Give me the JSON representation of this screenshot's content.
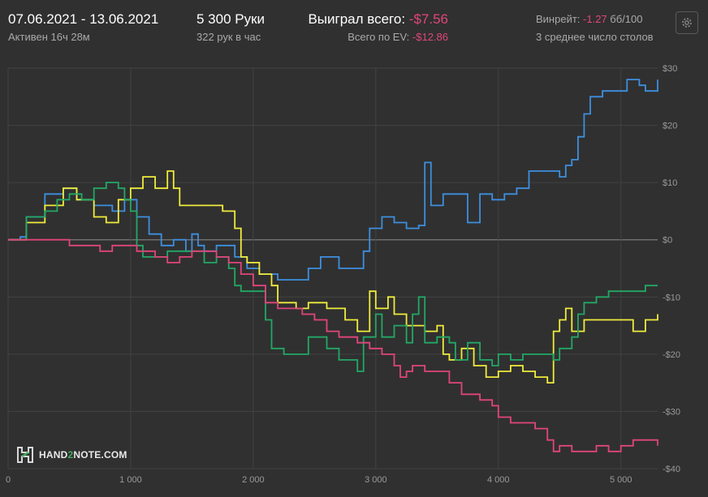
{
  "header": {
    "date_range": "07.06.2021 - 13.06.2021",
    "active": "Активен 16ч 28м",
    "hands": "5 300 Руки",
    "hands_per_hour": "322 рук в час",
    "won_label": "Выиграл всего:",
    "won_value": "-$7.56",
    "ev_label": "Всего по EV:",
    "ev_value": "-$12.86",
    "winrate_label": "Винрейт:",
    "winrate_value": "-1.27",
    "winrate_unit": "бб/100",
    "tables": "3 среднее число столов"
  },
  "settings_icon": "gear-icon",
  "logo": {
    "prefix": "HAND",
    "mid": "2",
    "suffix": "NOTE.COM"
  },
  "colors": {
    "background": "#303030",
    "grid": "#424242",
    "zero_line": "#7a7a7a",
    "negative": "#e0457b",
    "blue": "#3d8fe0",
    "yellow": "#f0ec3c",
    "green": "#22a865",
    "pink": "#e0457b"
  },
  "chart_data": {
    "type": "line",
    "xlim": [
      0,
      5300
    ],
    "ylim": [
      -40,
      30
    ],
    "x_ticks": [
      0,
      1000,
      2000,
      3000,
      4000,
      5000
    ],
    "x_tick_labels": [
      "0",
      "1 000",
      "2 000",
      "3 000",
      "4 000",
      "5 000"
    ],
    "y_ticks": [
      30,
      20,
      10,
      0,
      -10,
      -20,
      -30,
      -40
    ],
    "y_tick_labels": [
      "$30",
      "$20",
      "$10",
      "$0",
      "-$10",
      "-$20",
      "-$30",
      "-$40"
    ],
    "grid": true,
    "series": [
      {
        "color": "#3d8fe0",
        "points": [
          [
            0,
            0
          ],
          [
            100,
            0.5
          ],
          [
            150,
            4
          ],
          [
            300,
            8
          ],
          [
            450,
            9
          ],
          [
            560,
            7
          ],
          [
            700,
            6
          ],
          [
            850,
            5
          ],
          [
            950,
            7
          ],
          [
            1050,
            4
          ],
          [
            1150,
            1
          ],
          [
            1250,
            -1
          ],
          [
            1350,
            0
          ],
          [
            1450,
            -2
          ],
          [
            1500,
            1
          ],
          [
            1550,
            -1
          ],
          [
            1600,
            -2
          ],
          [
            1700,
            -1
          ],
          [
            1850,
            -3
          ],
          [
            1950,
            -5
          ],
          [
            2050,
            -6
          ],
          [
            2200,
            -7
          ],
          [
            2350,
            -7
          ],
          [
            2450,
            -5
          ],
          [
            2550,
            -3
          ],
          [
            2700,
            -5
          ],
          [
            2850,
            -5
          ],
          [
            2900,
            -2
          ],
          [
            2950,
            2
          ],
          [
            3050,
            4
          ],
          [
            3150,
            3
          ],
          [
            3250,
            2
          ],
          [
            3350,
            2.5
          ],
          [
            3400,
            13.5
          ],
          [
            3450,
            6
          ],
          [
            3550,
            8
          ],
          [
            3650,
            8
          ],
          [
            3750,
            3
          ],
          [
            3850,
            8
          ],
          [
            3950,
            7
          ],
          [
            4050,
            8
          ],
          [
            4150,
            9
          ],
          [
            4250,
            12
          ],
          [
            4400,
            12
          ],
          [
            4500,
            11
          ],
          [
            4550,
            13
          ],
          [
            4600,
            14
          ],
          [
            4650,
            18
          ],
          [
            4700,
            22
          ],
          [
            4750,
            25
          ],
          [
            4850,
            26
          ],
          [
            4950,
            26
          ],
          [
            5050,
            28
          ],
          [
            5150,
            27
          ],
          [
            5200,
            26
          ],
          [
            5300,
            28
          ]
        ]
      },
      {
        "color": "#f0ec3c",
        "points": [
          [
            0,
            0
          ],
          [
            150,
            3
          ],
          [
            300,
            6
          ],
          [
            450,
            9
          ],
          [
            560,
            7
          ],
          [
            700,
            4
          ],
          [
            800,
            3
          ],
          [
            900,
            7
          ],
          [
            1000,
            9
          ],
          [
            1100,
            11
          ],
          [
            1200,
            9
          ],
          [
            1300,
            12
          ],
          [
            1350,
            9
          ],
          [
            1400,
            6
          ],
          [
            1500,
            6
          ],
          [
            1600,
            6
          ],
          [
            1750,
            5
          ],
          [
            1850,
            2
          ],
          [
            1900,
            -3
          ],
          [
            1950,
            -4
          ],
          [
            2050,
            -6
          ],
          [
            2150,
            -8
          ],
          [
            2200,
            -11
          ],
          [
            2350,
            -12
          ],
          [
            2450,
            -11
          ],
          [
            2600,
            -12
          ],
          [
            2750,
            -14
          ],
          [
            2850,
            -16
          ],
          [
            2950,
            -9
          ],
          [
            3000,
            -12
          ],
          [
            3100,
            -10
          ],
          [
            3150,
            -13
          ],
          [
            3250,
            -15
          ],
          [
            3400,
            -16
          ],
          [
            3500,
            -15
          ],
          [
            3550,
            -20
          ],
          [
            3600,
            -21
          ],
          [
            3700,
            -19
          ],
          [
            3800,
            -22
          ],
          [
            3900,
            -24
          ],
          [
            4000,
            -23
          ],
          [
            4100,
            -22
          ],
          [
            4200,
            -23
          ],
          [
            4300,
            -24
          ],
          [
            4400,
            -25
          ],
          [
            4450,
            -16
          ],
          [
            4500,
            -14
          ],
          [
            4550,
            -12
          ],
          [
            4600,
            -16
          ],
          [
            4700,
            -14
          ],
          [
            4850,
            -14
          ],
          [
            5000,
            -14
          ],
          [
            5100,
            -16
          ],
          [
            5200,
            -14
          ],
          [
            5300,
            -13
          ]
        ]
      },
      {
        "color": "#22a865",
        "points": [
          [
            0,
            0
          ],
          [
            150,
            4
          ],
          [
            300,
            5
          ],
          [
            400,
            7
          ],
          [
            500,
            8
          ],
          [
            600,
            7
          ],
          [
            700,
            9
          ],
          [
            800,
            10
          ],
          [
            900,
            9
          ],
          [
            950,
            7
          ],
          [
            1000,
            5
          ],
          [
            1050,
            -1
          ],
          [
            1100,
            -3
          ],
          [
            1200,
            -3
          ],
          [
            1300,
            -2
          ],
          [
            1400,
            -2
          ],
          [
            1500,
            -2
          ],
          [
            1600,
            -4
          ],
          [
            1700,
            -3
          ],
          [
            1800,
            -5
          ],
          [
            1850,
            -8
          ],
          [
            1900,
            -9
          ],
          [
            2000,
            -9
          ],
          [
            2100,
            -14
          ],
          [
            2150,
            -19
          ],
          [
            2250,
            -20
          ],
          [
            2350,
            -20
          ],
          [
            2450,
            -17
          ],
          [
            2600,
            -19
          ],
          [
            2700,
            -21
          ],
          [
            2850,
            -23
          ],
          [
            2900,
            -17
          ],
          [
            3000,
            -13
          ],
          [
            3050,
            -17
          ],
          [
            3150,
            -15
          ],
          [
            3250,
            -18
          ],
          [
            3300,
            -13
          ],
          [
            3350,
            -10
          ],
          [
            3400,
            -18
          ],
          [
            3500,
            -17
          ],
          [
            3600,
            -18
          ],
          [
            3650,
            -21
          ],
          [
            3750,
            -18
          ],
          [
            3850,
            -21
          ],
          [
            3950,
            -22
          ],
          [
            4000,
            -20
          ],
          [
            4100,
            -21
          ],
          [
            4200,
            -20
          ],
          [
            4300,
            -20
          ],
          [
            4400,
            -20
          ],
          [
            4450,
            -21
          ],
          [
            4500,
            -19
          ],
          [
            4600,
            -17
          ],
          [
            4650,
            -13
          ],
          [
            4700,
            -11
          ],
          [
            4800,
            -10
          ],
          [
            4900,
            -9
          ],
          [
            5000,
            -9
          ],
          [
            5100,
            -9
          ],
          [
            5200,
            -8
          ],
          [
            5300,
            -8
          ]
        ]
      },
      {
        "color": "#e0457b",
        "points": [
          [
            0,
            0
          ],
          [
            200,
            0
          ],
          [
            350,
            0
          ],
          [
            500,
            -1
          ],
          [
            650,
            -1
          ],
          [
            750,
            -2
          ],
          [
            850,
            -1
          ],
          [
            950,
            -1
          ],
          [
            1050,
            -2
          ],
          [
            1100,
            -2
          ],
          [
            1200,
            -3
          ],
          [
            1300,
            -4
          ],
          [
            1400,
            -3
          ],
          [
            1500,
            -2
          ],
          [
            1600,
            -2
          ],
          [
            1700,
            -3
          ],
          [
            1800,
            -4
          ],
          [
            1900,
            -6
          ],
          [
            2000,
            -8
          ],
          [
            2100,
            -11
          ],
          [
            2200,
            -12
          ],
          [
            2300,
            -12
          ],
          [
            2400,
            -13
          ],
          [
            2500,
            -14
          ],
          [
            2600,
            -16
          ],
          [
            2700,
            -17
          ],
          [
            2850,
            -18
          ],
          [
            2950,
            -19
          ],
          [
            3050,
            -20
          ],
          [
            3150,
            -22
          ],
          [
            3200,
            -24
          ],
          [
            3250,
            -23
          ],
          [
            3300,
            -22
          ],
          [
            3400,
            -23
          ],
          [
            3500,
            -23
          ],
          [
            3600,
            -25
          ],
          [
            3700,
            -27
          ],
          [
            3750,
            -27
          ],
          [
            3850,
            -28
          ],
          [
            3950,
            -29
          ],
          [
            4000,
            -31
          ],
          [
            4100,
            -32
          ],
          [
            4200,
            -32
          ],
          [
            4300,
            -33
          ],
          [
            4400,
            -35
          ],
          [
            4450,
            -37
          ],
          [
            4500,
            -36
          ],
          [
            4600,
            -37
          ],
          [
            4700,
            -37
          ],
          [
            4800,
            -36
          ],
          [
            4900,
            -37
          ],
          [
            5000,
            -36
          ],
          [
            5100,
            -35
          ],
          [
            5200,
            -35
          ],
          [
            5300,
            -36
          ]
        ]
      }
    ]
  }
}
